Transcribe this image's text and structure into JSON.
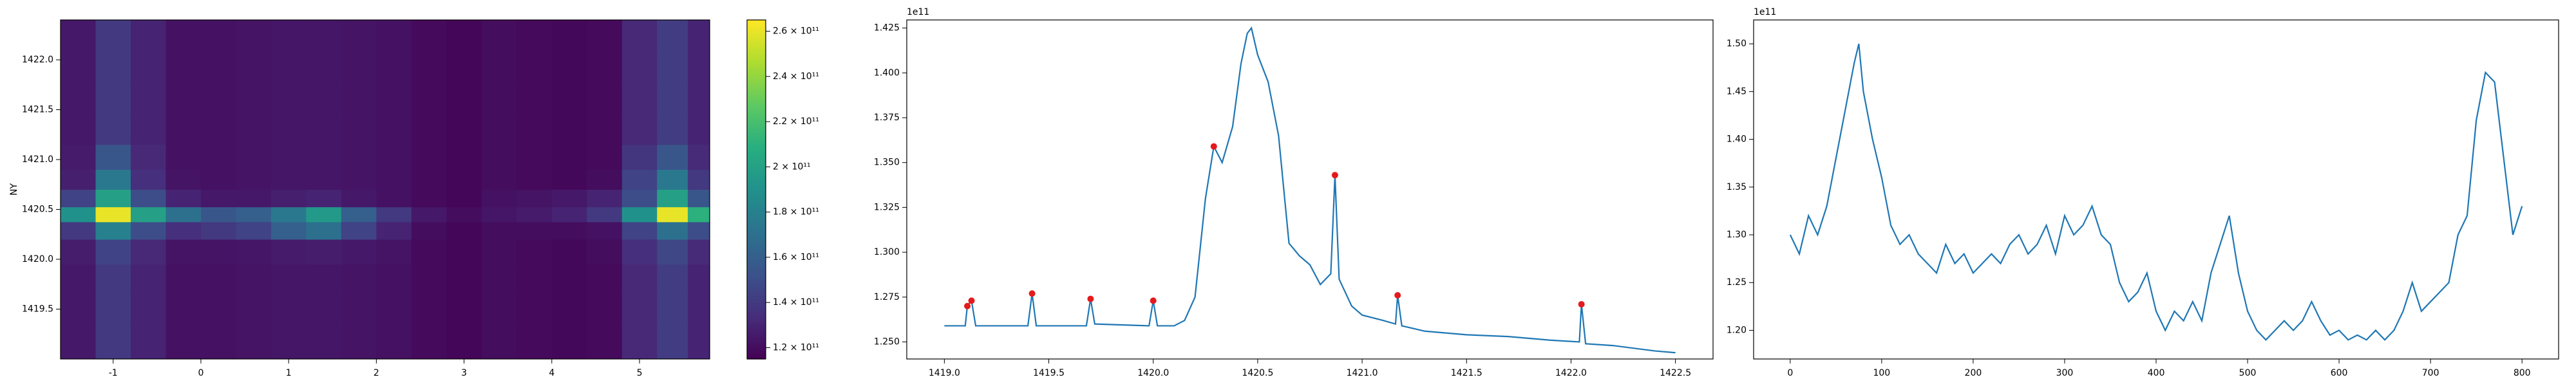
{
  "chart_data": [
    {
      "type": "heatmap",
      "cmap": "viridis",
      "ylabel": "NY",
      "x": [
        -1.4,
        -1.0,
        -0.6,
        -0.2,
        0.2,
        0.6,
        1.0,
        1.4,
        1.8,
        2.2,
        2.6,
        3.0,
        3.4,
        3.8,
        4.2,
        4.6,
        5.0,
        5.4,
        5.7
      ],
      "y": [
        1419.2,
        1419.5,
        1419.8,
        1420.1,
        1420.3,
        1420.45,
        1420.6,
        1420.8,
        1421.0,
        1421.3,
        1421.6,
        1421.9,
        1422.2
      ],
      "z": [
        [
          125000000000.0,
          140000000000.0,
          130000000000.0,
          122000000000.0,
          122000000000.0,
          123000000000.0,
          124000000000.0,
          124000000000.0,
          123000000000.0,
          122000000000.0,
          119000000000.0,
          117000000000.0,
          120000000000.0,
          119000000000.0,
          118000000000.0,
          119000000000.0,
          132000000000.0,
          142000000000.0,
          130000000000.0
        ],
        [
          125000000000.0,
          140000000000.0,
          130000000000.0,
          122000000000.0,
          122000000000.0,
          123000000000.0,
          124000000000.0,
          124000000000.0,
          123000000000.0,
          122000000000.0,
          119000000000.0,
          117000000000.0,
          120000000000.0,
          119000000000.0,
          118000000000.0,
          119000000000.0,
          132000000000.0,
          142000000000.0,
          130000000000.0
        ],
        [
          125000000000.0,
          140000000000.0,
          130000000000.0,
          122000000000.0,
          122000000000.0,
          123000000000.0,
          124000000000.0,
          124000000000.0,
          123000000000.0,
          122000000000.0,
          119000000000.0,
          117000000000.0,
          120000000000.0,
          119000000000.0,
          118000000000.0,
          119000000000.0,
          132000000000.0,
          142000000000.0,
          130000000000.0
        ],
        [
          127000000000.0,
          145000000000.0,
          132000000000.0,
          123000000000.0,
          123000000000.0,
          124000000000.0,
          126000000000.0,
          127000000000.0,
          125000000000.0,
          123000000000.0,
          119000000000.0,
          117000000000.0,
          120000000000.0,
          119000000000.0,
          118000000000.0,
          120000000000.0,
          135000000000.0,
          147000000000.0,
          133000000000.0
        ],
        [
          140000000000.0,
          180000000000.0,
          150000000000.0,
          135000000000.0,
          140000000000.0,
          145000000000.0,
          160000000000.0,
          170000000000.0,
          145000000000.0,
          130000000000.0,
          120000000000.0,
          117000000000.0,
          120000000000.0,
          120000000000.0,
          120000000000.0,
          122000000000.0,
          145000000000.0,
          170000000000.0,
          150000000000.0
        ],
        [
          190000000000.0,
          260000000000.0,
          200000000000.0,
          170000000000.0,
          155000000000.0,
          160000000000.0,
          175000000000.0,
          195000000000.0,
          160000000000.0,
          140000000000.0,
          125000000000.0,
          120000000000.0,
          124000000000.0,
          126000000000.0,
          130000000000.0,
          140000000000.0,
          190000000000.0,
          260000000000.0,
          210000000000.0
        ],
        [
          145000000000.0,
          200000000000.0,
          150000000000.0,
          130000000000.0,
          125000000000.0,
          125000000000.0,
          128000000000.0,
          130000000000.0,
          125000000000.0,
          122000000000.0,
          119000000000.0,
          117000000000.0,
          122000000000.0,
          123000000000.0,
          125000000000.0,
          130000000000.0,
          150000000000.0,
          200000000000.0,
          155000000000.0
        ],
        [
          128000000000.0,
          175000000000.0,
          135000000000.0,
          123000000000.0,
          122000000000.0,
          123000000000.0,
          124000000000.0,
          124000000000.0,
          123000000000.0,
          122000000000.0,
          119000000000.0,
          117000000000.0,
          120000000000.0,
          119000000000.0,
          118000000000.0,
          120000000000.0,
          145000000000.0,
          175000000000.0,
          140000000000.0
        ],
        [
          126000000000.0,
          155000000000.0,
          132000000000.0,
          122000000000.0,
          122000000000.0,
          123000000000.0,
          124000000000.0,
          124000000000.0,
          123000000000.0,
          122000000000.0,
          119000000000.0,
          117000000000.0,
          120000000000.0,
          119000000000.0,
          118000000000.0,
          119000000000.0,
          138000000000.0,
          155000000000.0,
          133000000000.0
        ],
        [
          125000000000.0,
          140000000000.0,
          130000000000.0,
          122000000000.0,
          122000000000.0,
          123000000000.0,
          124000000000.0,
          124000000000.0,
          123000000000.0,
          122000000000.0,
          119000000000.0,
          117000000000.0,
          120000000000.0,
          119000000000.0,
          118000000000.0,
          119000000000.0,
          132000000000.0,
          142000000000.0,
          130000000000.0
        ],
        [
          125000000000.0,
          140000000000.0,
          130000000000.0,
          122000000000.0,
          122000000000.0,
          123000000000.0,
          124000000000.0,
          124000000000.0,
          123000000000.0,
          122000000000.0,
          119000000000.0,
          117000000000.0,
          120000000000.0,
          119000000000.0,
          118000000000.0,
          119000000000.0,
          132000000000.0,
          142000000000.0,
          130000000000.0
        ],
        [
          125000000000.0,
          140000000000.0,
          130000000000.0,
          122000000000.0,
          122000000000.0,
          123000000000.0,
          124000000000.0,
          124000000000.0,
          123000000000.0,
          122000000000.0,
          119000000000.0,
          117000000000.0,
          120000000000.0,
          119000000000.0,
          118000000000.0,
          119000000000.0,
          132000000000.0,
          142000000000.0,
          130000000000.0
        ],
        [
          125000000000.0,
          140000000000.0,
          130000000000.0,
          122000000000.0,
          122000000000.0,
          123000000000.0,
          124000000000.0,
          124000000000.0,
          123000000000.0,
          122000000000.0,
          119000000000.0,
          117000000000.0,
          120000000000.0,
          119000000000.0,
          118000000000.0,
          119000000000.0,
          132000000000.0,
          142000000000.0,
          130000000000.0
        ]
      ],
      "xlim": [
        -1.6,
        5.8
      ],
      "xticks": [
        -1,
        0,
        1,
        2,
        3,
        4,
        5
      ],
      "ylim": [
        1419.0,
        1422.4
      ],
      "yticks": [
        1419.5,
        {
          "value": 1420.0,
          "label": "1420.0"
        },
        1420.5,
        {
          "value": 1421.0,
          "label": "1421.0"
        },
        1421.5,
        {
          "value": 1422.0,
          "label": "1422.0"
        }
      ],
      "clim": [
        115000000000.0,
        265000000000.0
      ],
      "cticks": [
        {
          "value": 120000000000.0,
          "label": "1.2 × 10¹¹"
        },
        {
          "value": 140000000000.0,
          "label": "1.4 × 10¹¹"
        },
        {
          "value": 160000000000.0,
          "label": "1.6 × 10¹¹"
        },
        {
          "value": 180000000000.0,
          "label": "1.8 × 10¹¹"
        },
        {
          "value": 200000000000.0,
          "label": "2 × 10¹¹"
        },
        {
          "value": 220000000000.0,
          "label": "2.2 × 10¹¹"
        },
        {
          "value": 240000000000.0,
          "label": "2.4 × 10¹¹"
        },
        {
          "value": 260000000000.0,
          "label": "2.6 × 10¹¹"
        }
      ]
    },
    {
      "type": "line",
      "color": "#1f77b4",
      "offset_label": "1e11",
      "x": [
        1419.0,
        1419.1,
        1419.11,
        1419.13,
        1419.15,
        1419.4,
        1419.42,
        1419.44,
        1419.68,
        1419.7,
        1419.72,
        1419.98,
        1420.0,
        1420.02,
        1420.1,
        1420.15,
        1420.2,
        1420.25,
        1420.29,
        1420.33,
        1420.38,
        1420.42,
        1420.45,
        1420.47,
        1420.5,
        1420.55,
        1420.6,
        1420.65,
        1420.7,
        1420.75,
        1420.8,
        1420.85,
        1420.87,
        1420.89,
        1420.95,
        1421.0,
        1421.1,
        1421.16,
        1421.17,
        1421.19,
        1421.3,
        1421.5,
        1421.7,
        1421.9,
        1422.04,
        1422.05,
        1422.07,
        1422.2,
        1422.4,
        1422.5
      ],
      "values": [
        1.259,
        1.259,
        1.27,
        1.273,
        1.259,
        1.259,
        1.277,
        1.259,
        1.259,
        1.274,
        1.26,
        1.259,
        1.273,
        1.259,
        1.259,
        1.262,
        1.275,
        1.33,
        1.359,
        1.35,
        1.37,
        1.405,
        1.422,
        1.425,
        1.41,
        1.395,
        1.365,
        1.305,
        1.298,
        1.293,
        1.282,
        1.288,
        1.343,
        1.285,
        1.27,
        1.265,
        1.262,
        1.26,
        1.276,
        1.259,
        1.256,
        1.254,
        1.253,
        1.251,
        1.25,
        1.271,
        1.249,
        1.248,
        1.245,
        1.244
      ],
      "markers": {
        "color": "#e41a1c",
        "x": [
          1419.11,
          1419.13,
          1419.42,
          1419.7,
          1420.0,
          1420.29,
          1420.87,
          1421.17,
          1422.05
        ],
        "values": [
          1.27,
          1.273,
          1.277,
          1.274,
          1.273,
          1.359,
          1.343,
          1.276,
          1.271
        ]
      },
      "xlim": [
        1418.82,
        1422.68
      ],
      "xticks": [
        {
          "value": 1419.0,
          "label": "1419.0"
        },
        1419.5,
        {
          "value": 1420.0,
          "label": "1420.0"
        },
        1420.5,
        {
          "value": 1421.0,
          "label": "1421.0"
        },
        1421.5,
        {
          "value": 1422.0,
          "label": "1422.0"
        },
        1422.5
      ],
      "ylim": [
        1.2405,
        1.4295
      ],
      "yticks": [
        {
          "value": 1.25,
          "label": "1.250"
        },
        1.275,
        {
          "value": 1.3,
          "label": "1.300"
        },
        1.325,
        {
          "value": 1.35,
          "label": "1.350"
        },
        1.375,
        {
          "value": 1.4,
          "label": "1.400"
        },
        1.425
      ]
    },
    {
      "type": "line",
      "color": "#1f77b4",
      "offset_label": "1e11",
      "x": [
        0,
        10,
        20,
        30,
        40,
        50,
        60,
        70,
        75,
        80,
        90,
        100,
        110,
        120,
        130,
        140,
        150,
        160,
        170,
        180,
        190,
        200,
        210,
        220,
        230,
        240,
        250,
        260,
        270,
        280,
        290,
        300,
        310,
        320,
        330,
        340,
        350,
        360,
        370,
        380,
        390,
        400,
        410,
        420,
        430,
        440,
        450,
        460,
        470,
        480,
        490,
        500,
        510,
        520,
        530,
        540,
        550,
        560,
        570,
        580,
        590,
        600,
        610,
        620,
        630,
        640,
        650,
        660,
        670,
        680,
        690,
        700,
        710,
        720,
        730,
        740,
        750,
        760,
        770,
        780,
        790,
        800
      ],
      "values": [
        1.3,
        1.28,
        1.32,
        1.3,
        1.33,
        1.38,
        1.43,
        1.48,
        1.5,
        1.45,
        1.4,
        1.36,
        1.31,
        1.29,
        1.3,
        1.28,
        1.27,
        1.26,
        1.29,
        1.27,
        1.28,
        1.26,
        1.27,
        1.28,
        1.27,
        1.29,
        1.3,
        1.28,
        1.29,
        1.31,
        1.28,
        1.32,
        1.3,
        1.31,
        1.33,
        1.3,
        1.29,
        1.25,
        1.23,
        1.24,
        1.26,
        1.22,
        1.2,
        1.22,
        1.21,
        1.23,
        1.21,
        1.26,
        1.29,
        1.32,
        1.26,
        1.22,
        1.2,
        1.19,
        1.2,
        1.21,
        1.2,
        1.21,
        1.23,
        1.21,
        1.195,
        1.2,
        1.19,
        1.195,
        1.19,
        1.2,
        1.19,
        1.2,
        1.22,
        1.25,
        1.22,
        1.23,
        1.24,
        1.25,
        1.3,
        1.32,
        1.42,
        1.47,
        1.46,
        1.38,
        1.3,
        1.33
      ],
      "xlim": [
        -40,
        840
      ],
      "xticks": [
        0,
        100,
        200,
        300,
        400,
        500,
        600,
        700,
        800
      ],
      "ylim": [
        1.17,
        1.525
      ],
      "yticks": [
        {
          "value": 1.2,
          "label": "1.20"
        },
        1.25,
        {
          "value": 1.3,
          "label": "1.30"
        },
        1.35,
        {
          "value": 1.4,
          "label": "1.40"
        },
        1.45,
        {
          "value": 1.5,
          "label": "1.50"
        }
      ]
    }
  ]
}
